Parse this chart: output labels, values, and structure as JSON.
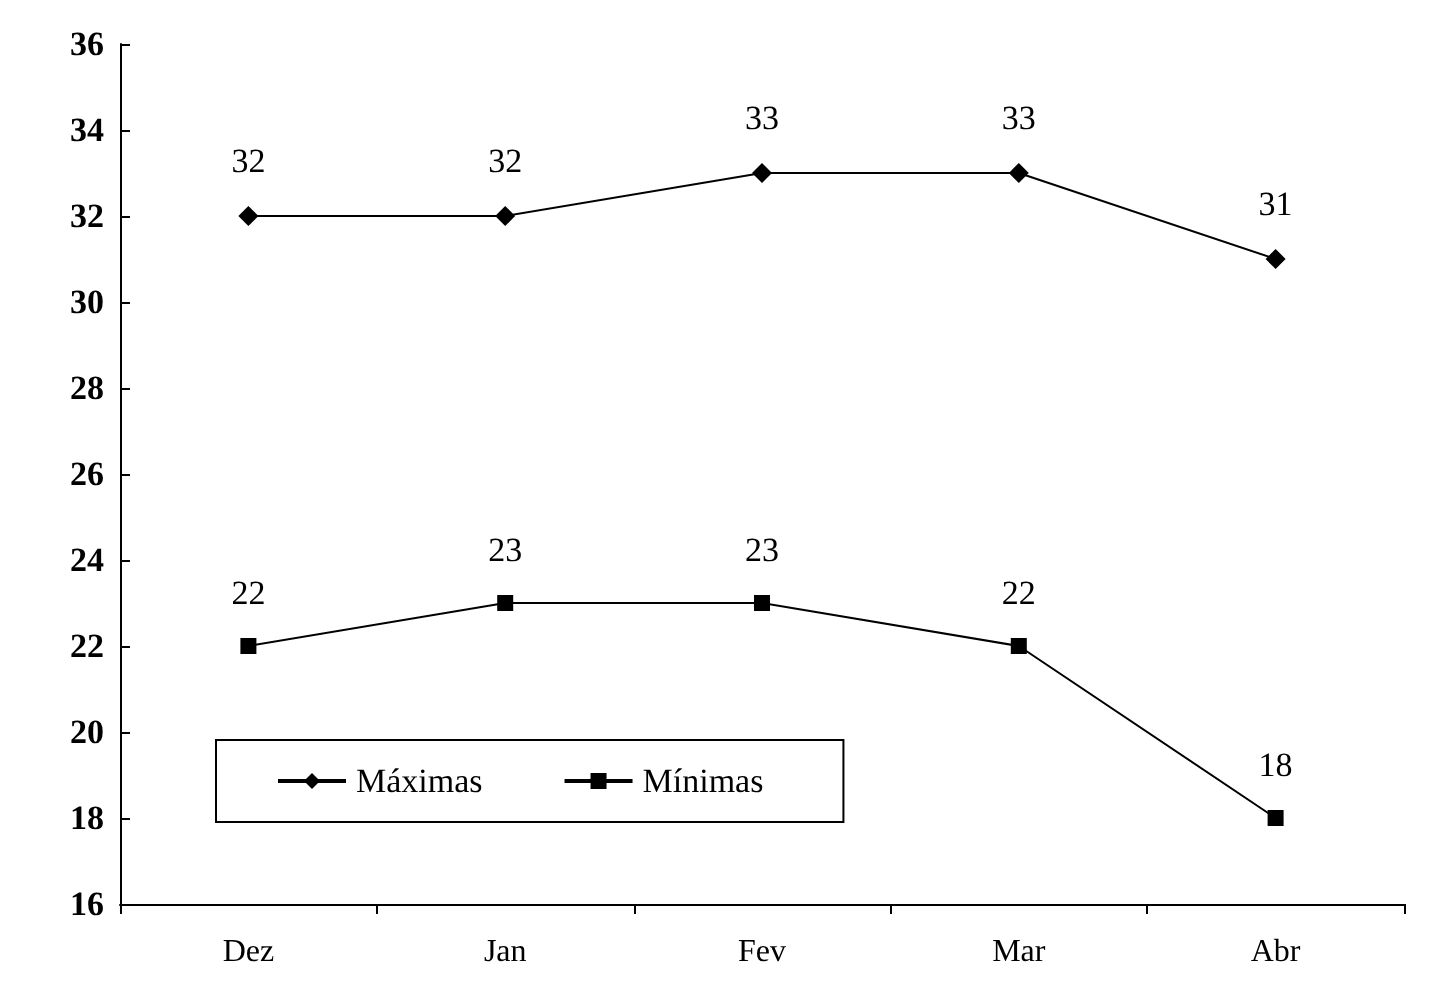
{
  "chart_data": {
    "type": "line",
    "categories": [
      "Dez",
      "Jan",
      "Fev",
      "Mar",
      "Abr"
    ],
    "series": [
      {
        "name": "Máximas",
        "color": "#000000",
        "marker": "diamond",
        "values": [
          32,
          32,
          33,
          33,
          31
        ]
      },
      {
        "name": "Mínimas",
        "color": "#000000",
        "marker": "square",
        "values": [
          22,
          23,
          23,
          22,
          18
        ]
      }
    ],
    "ylim": [
      16,
      36
    ],
    "yticks": [
      16,
      18,
      20,
      22,
      24,
      26,
      28,
      30,
      32,
      34,
      36
    ],
    "grid": false,
    "legend": "bottom left",
    "data_labels": true
  }
}
